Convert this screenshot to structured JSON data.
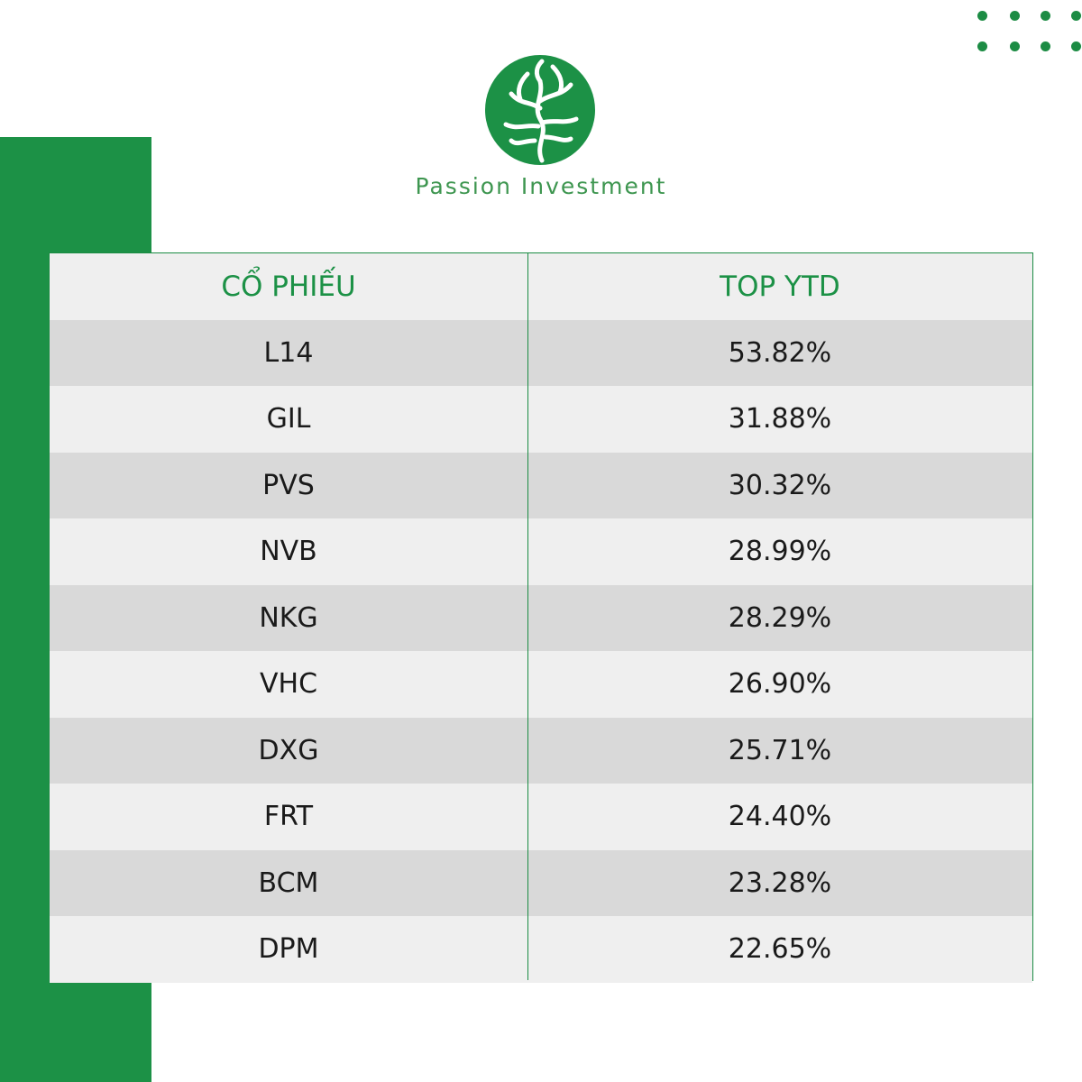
{
  "brand": {
    "name": "Passion Investment",
    "logo_icon": "tree-logo-icon",
    "color": "#1c9146"
  },
  "table": {
    "headers": [
      "CỔ PHIẾU",
      "TOP YTD"
    ],
    "rows": [
      {
        "ticker": "L14",
        "ytd": "53.82%"
      },
      {
        "ticker": "GIL",
        "ytd": "31.88%"
      },
      {
        "ticker": "PVS",
        "ytd": "30.32%"
      },
      {
        "ticker": "NVB",
        "ytd": "28.99%"
      },
      {
        "ticker": "NKG",
        "ytd": "28.29%"
      },
      {
        "ticker": "VHC",
        "ytd": "26.90%"
      },
      {
        "ticker": "DXG",
        "ytd": "25.71%"
      },
      {
        "ticker": "FRT",
        "ytd": "24.40%"
      },
      {
        "ticker": "BCM",
        "ytd": "23.28%"
      },
      {
        "ticker": "DPM",
        "ytd": "22.65%"
      }
    ]
  }
}
